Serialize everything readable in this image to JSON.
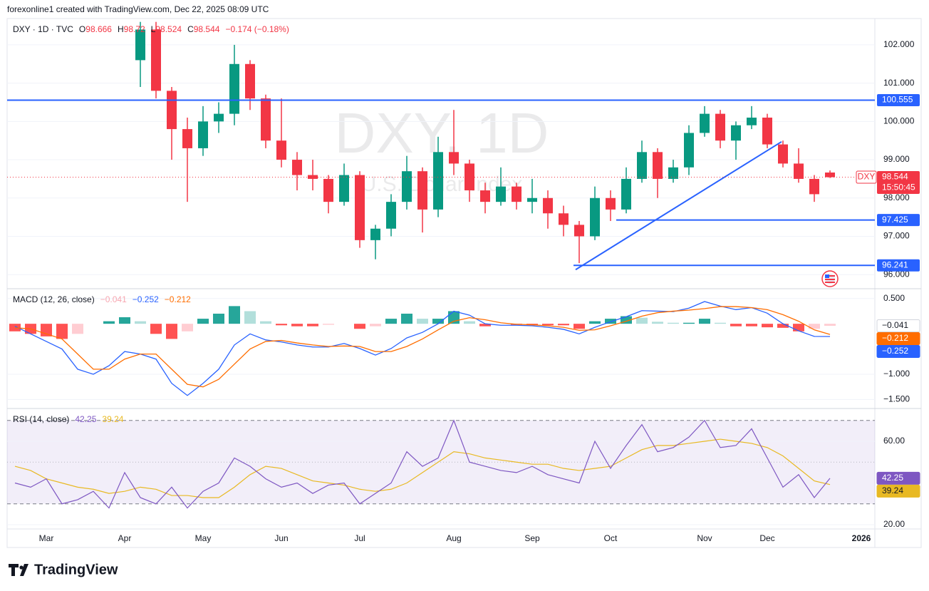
{
  "header": {
    "attribution": "forexonline1 created with TradingView.com, Dec 22, 2025 08:09 UTC"
  },
  "footer": {
    "logo": "TradingView"
  },
  "chart_data": [
    {
      "type": "candlestick",
      "symbol": "DXY · 1D · TVC",
      "watermark": "DXY, 1D",
      "watermark_subtitle": "U.S. Dollar Index",
      "legend_keys": [
        "O",
        "H",
        "L",
        "C"
      ],
      "change": "−0.174 (−0.18%)",
      "last_tag": "DXY",
      "countdown": "15:50:45",
      "up_color": "#089981",
      "down_color": "#f23645",
      "open": [
        null,
        null,
        null,
        null,
        null,
        null,
        null,
        null,
        101.6,
        102.4,
        100.8,
        99.8,
        99.3,
        100.0,
        100.2,
        101.5,
        100.6,
        99.5,
        99.0,
        98.6,
        98.5,
        97.9,
        98.6,
        96.9,
        97.2,
        97.9,
        98.7,
        97.7,
        99.2,
        98.9,
        98.2,
        97.9,
        98.3,
        97.9,
        98.0,
        97.6,
        97.3,
        97.0,
        98.0,
        97.7,
        98.5,
        99.2,
        98.5,
        98.8,
        99.7,
        100.2,
        99.5,
        99.9,
        100.1,
        99.4,
        98.9,
        98.5,
        98.666,
        null,
        null
      ],
      "high": [
        null,
        null,
        null,
        null,
        null,
        null,
        null,
        null,
        102.6,
        102.6,
        100.9,
        100.1,
        100.4,
        100.5,
        102.0,
        101.6,
        100.7,
        100.6,
        99.2,
        99.0,
        98.6,
        98.9,
        98.7,
        97.3,
        98.1,
        99.1,
        98.8,
        99.6,
        100.3,
        99.0,
        98.4,
        98.8,
        98.4,
        98.5,
        98.2,
        97.8,
        97.4,
        98.3,
        98.2,
        98.8,
        99.5,
        99.3,
        99.0,
        99.9,
        100.4,
        100.3,
        100.0,
        100.4,
        100.2,
        99.5,
        99.3,
        98.6,
        98.72,
        null,
        null
      ],
      "low": [
        null,
        null,
        null,
        null,
        null,
        null,
        null,
        null,
        100.9,
        100.6,
        99.0,
        97.9,
        99.1,
        99.7,
        99.9,
        100.3,
        99.3,
        98.8,
        98.2,
        98.2,
        97.6,
        97.8,
        96.7,
        96.4,
        97.0,
        97.7,
        97.1,
        97.5,
        98.6,
        97.9,
        97.6,
        97.8,
        97.7,
        97.6,
        97.2,
        97.0,
        96.3,
        96.9,
        97.4,
        97.6,
        98.4,
        98.0,
        98.4,
        98.6,
        99.6,
        99.3,
        99.0,
        99.8,
        99.3,
        98.8,
        98.4,
        97.9,
        98.524,
        null,
        null
      ],
      "close": [
        null,
        null,
        null,
        null,
        null,
        null,
        null,
        null,
        102.4,
        100.8,
        99.8,
        99.3,
        100.0,
        100.2,
        101.5,
        100.6,
        99.5,
        99.0,
        98.6,
        98.5,
        97.9,
        98.6,
        96.9,
        97.2,
        97.9,
        98.7,
        97.7,
        99.2,
        98.9,
        98.2,
        97.9,
        98.3,
        97.9,
        98.0,
        97.6,
        97.3,
        97.0,
        98.0,
        97.7,
        98.5,
        99.2,
        98.5,
        98.8,
        99.7,
        100.2,
        99.5,
        99.9,
        100.1,
        99.4,
        98.9,
        98.5,
        98.1,
        98.544,
        null,
        null
      ],
      "ylim": [
        95.65,
        102.65
      ],
      "yticks": [
        {
          "value": 96,
          "label": "96.000"
        },
        {
          "value": 97,
          "label": "97.000"
        },
        {
          "value": 98,
          "label": "98.000"
        },
        {
          "value": 99,
          "label": "99.000"
        },
        {
          "value": 100,
          "label": "100.000"
        },
        {
          "value": 101,
          "label": "101.000"
        },
        {
          "value": 102,
          "label": "102.000"
        }
      ],
      "levels": [
        100.555,
        97.425,
        96.241
      ],
      "level_color": "#2962ff",
      "trendline": [
        96.13,
        99.47
      ]
    },
    {
      "type": "macd",
      "title": "MACD (12, 26, close)",
      "histogram": [
        -0.15,
        -0.2,
        -0.25,
        -0.3,
        -0.2,
        0,
        0.05,
        0.13,
        0.05,
        -0.2,
        -0.3,
        -0.15,
        0.1,
        0.2,
        0.35,
        0.25,
        0.05,
        -0.03,
        -0.05,
        -0.05,
        -0.02,
        0,
        -0.1,
        -0.05,
        0.1,
        0.2,
        0.1,
        0.1,
        0.25,
        0.05,
        -0.05,
        0,
        -0.02,
        -0.03,
        -0.03,
        -0.03,
        -0.1,
        0.05,
        0.1,
        0.15,
        0.12,
        0.04,
        0.02,
        0.02,
        0.1,
        0.02,
        -0.05,
        -0.05,
        -0.07,
        -0.08,
        -0.15,
        -0.1,
        -0.041,
        null,
        null
      ],
      "histogram_label": "−0.041",
      "macd": [
        -0.05,
        -0.2,
        -0.35,
        -0.5,
        -0.9,
        -1.0,
        -0.83,
        -0.55,
        -0.6,
        -0.7,
        -1.18,
        -1.42,
        -1.18,
        -0.9,
        -0.42,
        -0.2,
        -0.32,
        -0.36,
        -0.42,
        -0.46,
        -0.46,
        -0.39,
        -0.49,
        -0.62,
        -0.49,
        -0.28,
        -0.17,
        0,
        0.25,
        0.17,
        0,
        -0.03,
        -0.03,
        -0.04,
        -0.07,
        -0.11,
        -0.2,
        -0.07,
        0.04,
        0.14,
        0.26,
        0.25,
        0.24,
        0.31,
        0.44,
        0.35,
        0.28,
        0.32,
        0.21,
        0,
        -0.14,
        -0.25,
        -0.252,
        null,
        null
      ],
      "macd_label": "−0.252",
      "macd_color": "#2962ff",
      "signal": [
        -0.08,
        -0.1,
        -0.2,
        -0.3,
        -0.6,
        -0.9,
        -0.9,
        -0.7,
        -0.6,
        -0.6,
        -0.9,
        -1.2,
        -1.25,
        -1.1,
        -0.8,
        -0.5,
        -0.35,
        -0.33,
        -0.38,
        -0.42,
        -0.45,
        -0.44,
        -0.45,
        -0.55,
        -0.55,
        -0.45,
        -0.3,
        -0.12,
        0.05,
        0.12,
        0.08,
        0.02,
        -0.01,
        -0.02,
        -0.04,
        -0.07,
        -0.13,
        -0.12,
        -0.04,
        0.05,
        0.15,
        0.22,
        0.25,
        0.27,
        0.3,
        0.34,
        0.34,
        0.32,
        0.28,
        0.18,
        0.05,
        -0.12,
        -0.212,
        null,
        null
      ],
      "signal_label": "−0.212",
      "signal_color": "#ff6d00",
      "ylim": [
        -1.65,
        0.68
      ],
      "yticks": [
        {
          "value": 0.5,
          "label": "0.500"
        },
        {
          "value": -1,
          "label": "−1.000"
        },
        {
          "value": -1.5,
          "label": "−1.500"
        }
      ]
    },
    {
      "type": "rsi",
      "title": "RSI (14, close)",
      "categories": [
        null,
        null,
        "Mar",
        null,
        null,
        null,
        null,
        "Apr",
        null,
        null,
        null,
        null,
        "May",
        null,
        null,
        null,
        null,
        "Jun",
        null,
        null,
        null,
        null,
        "Jul",
        null,
        null,
        null,
        null,
        null,
        "Aug",
        null,
        null,
        null,
        null,
        "Sep",
        null,
        null,
        null,
        null,
        "Oct",
        null,
        null,
        null,
        null,
        null,
        "Nov",
        null,
        null,
        null,
        "Dec",
        null,
        null,
        null,
        null,
        null,
        "2026"
      ],
      "rsi": [
        40,
        38,
        42,
        30,
        32,
        36,
        28,
        45,
        33,
        30,
        38,
        28,
        36,
        40,
        52,
        48,
        42,
        38,
        40,
        35,
        39,
        40,
        30,
        35,
        40,
        55,
        48,
        52,
        70,
        50,
        48,
        46,
        45,
        48,
        44,
        42,
        40,
        60,
        47,
        58,
        68,
        55,
        57,
        62,
        70,
        57,
        58,
        66,
        52,
        38,
        44,
        33,
        42.25,
        null,
        null
      ],
      "rsi_color": "#7e57c2",
      "ma": [
        48,
        46,
        42,
        40,
        38,
        37,
        35,
        36,
        38,
        37,
        34,
        34,
        33,
        33,
        38,
        44,
        48,
        47,
        44,
        41,
        40,
        39,
        37,
        36,
        37,
        40,
        45,
        50,
        55,
        54,
        52,
        51,
        50,
        49,
        49,
        47,
        46,
        47,
        48,
        52,
        56,
        58,
        58,
        59,
        60,
        61,
        60,
        59,
        57,
        53,
        47,
        41,
        39.24,
        null,
        null
      ],
      "ma_color": "#e8b923",
      "band": [
        30,
        70
      ],
      "midline": 50,
      "ylim": [
        17.95,
        74.7
      ],
      "yticks": [
        {
          "value": 60,
          "label": "60.00"
        },
        {
          "value": 20,
          "label": "20.00"
        }
      ]
    }
  ]
}
